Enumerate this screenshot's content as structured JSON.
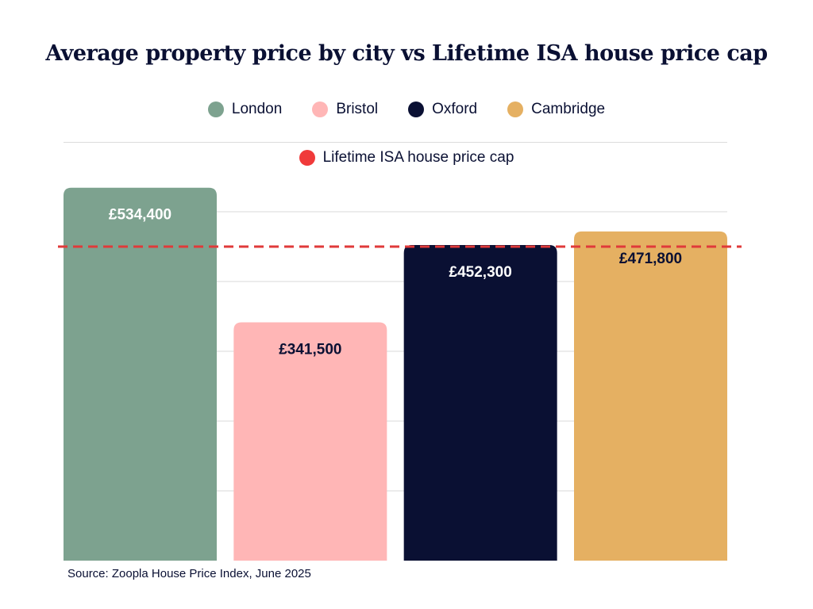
{
  "chart_data": {
    "type": "bar",
    "title": "Average property price by city vs Lifetime ISA house price cap",
    "categories": [
      "London",
      "Bristol",
      "Oxford",
      "Cambridge"
    ],
    "values": [
      534400,
      341500,
      452300,
      471800
    ],
    "value_labels": [
      "£534,400",
      "£341,500",
      "£452,300",
      "£471,800"
    ],
    "colors": [
      "#7da28f",
      "#ffb6b6",
      "#0a1033",
      "#e5b062"
    ],
    "label_colors": [
      "#ffffff",
      "#0a1033",
      "#ffffff",
      "#0a1033"
    ],
    "reference_line": {
      "name": "Lifetime ISA house price cap",
      "value": 450000,
      "color": "#e03a3a",
      "style": "dashed"
    },
    "legend": {
      "entries": [
        "London",
        "Bristol",
        "Oxford",
        "Cambridge"
      ],
      "reference_entry": "Lifetime ISA house price cap",
      "reference_marker_color": "#f03a3a",
      "placement": "top-center"
    },
    "ylim": [
      0,
      500000
    ],
    "gridlines": [
      100000,
      200000,
      300000,
      400000,
      500000
    ],
    "grid": true,
    "xlabel": "",
    "ylabel": ""
  },
  "source": "Source: Zoopla House Price Index, June 2025"
}
